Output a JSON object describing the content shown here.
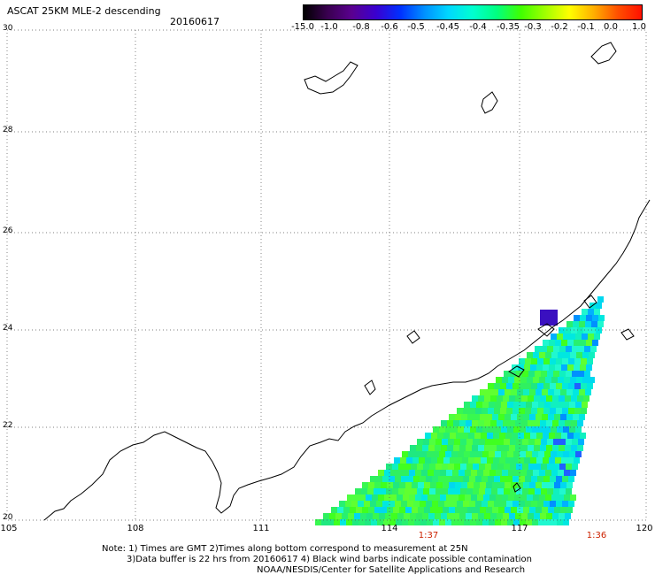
{
  "header": {
    "title": "ASCAT 25KM MLE-2 descending",
    "date": "20160617"
  },
  "colorbar": {
    "labels": [
      "-15.0",
      "-1.0",
      "-0.8",
      "-0.6",
      "-0.5",
      "-0.45",
      "-0.4",
      "-0.35",
      "-0.3",
      "-0.2",
      "-0.1",
      "0.0",
      "1.0"
    ],
    "colors": [
      "#000000",
      "#3a0050",
      "#5a0090",
      "#3a00d0",
      "#0030ff",
      "#0090ff",
      "#00d8ff",
      "#00ffd0",
      "#00ff80",
      "#40ff00",
      "#a0ff00",
      "#ffff00",
      "#ffb000",
      "#ff5000",
      "#ff1000"
    ]
  },
  "axes": {
    "lat_labels": [
      "30",
      "28",
      "26",
      "24",
      "22",
      "20"
    ],
    "lon_labels": [
      "105",
      "108",
      "111",
      "114",
      "117",
      "120"
    ]
  },
  "times": [
    "1:37",
    "1:36"
  ],
  "notes": {
    "line1": "Note: 1) Times are GMT 2)Times along bottom correspond to measurement at 25N",
    "line2": "3)Data buffer is 22 hrs from 20160617 4) Black wind barbs indicate possible contamination",
    "line3": "NOAA/NESDIS/Center for Satellite Applications and Research"
  }
}
